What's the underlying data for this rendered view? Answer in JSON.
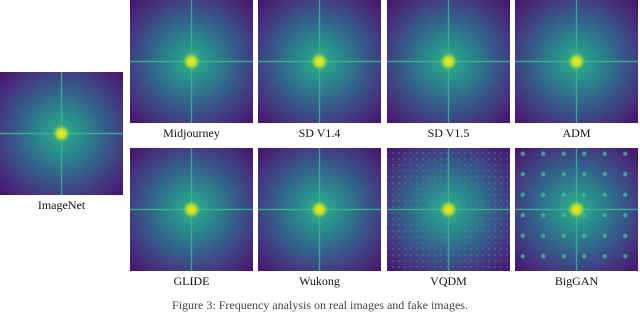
{
  "figure": {
    "real": {
      "label": "ImageNet"
    },
    "fakes": [
      {
        "label": "Midjourney"
      },
      {
        "label": "SD V1.4"
      },
      {
        "label": "SD V1.5"
      },
      {
        "label": "ADM"
      },
      {
        "label": "GLIDE"
      },
      {
        "label": "Wukong"
      },
      {
        "label": "VQDM"
      },
      {
        "label": "BigGAN"
      }
    ],
    "caption": "Figure 3: Frequency analysis on real images and fake images."
  }
}
